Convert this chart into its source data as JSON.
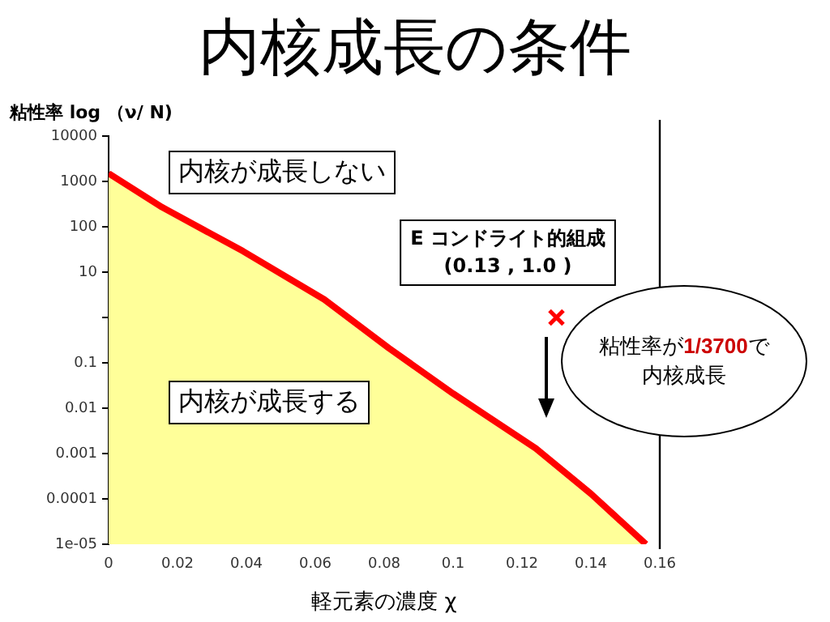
{
  "chart_data": {
    "type": "area",
    "title": "内核成長の条件",
    "xlabel": "軽元素の濃度 χ",
    "ylabel": "粘性率 log （ν/ N)",
    "x": [
      0,
      0.0155,
      0.039,
      0.0626,
      0.0814,
      0.1,
      0.124,
      0.14,
      0.156
    ],
    "series": [
      {
        "type": "area",
        "color": "#ff0000",
        "values": [
          1500,
          270,
          29,
          2.5,
          0.21,
          0.021,
          0.0013,
          0.00013,
          1e-05
        ]
      },
      {
        "type": "scatter",
        "color": "#ff0000",
        "marker": "cross",
        "x": [
          0.13
        ],
        "values": [
          1.0
        ]
      }
    ],
    "log": "y",
    "xlim": [
      0,
      0.16
    ],
    "ylim": [
      1e-05,
      10000
    ],
    "xticks": [
      0,
      0.02,
      0.04,
      0.06,
      0.08,
      0.1,
      0.12,
      0.14,
      0.16
    ],
    "yticks": [
      {
        "value": 10000,
        "label": "10000"
      },
      1000,
      100,
      10,
      {
        "value": 1,
        "label": null
      },
      0.1,
      0.01,
      0.001,
      0.0001,
      {
        "value": 1e-05,
        "label": "1e-05"
      }
    ],
    "ref_lines": [
      {
        "axis": "x",
        "value": 0.16,
        "color": "#000000"
      }
    ],
    "annotations": [
      "内核が成長しない",
      "内核が成長する",
      {
        "text": "E コンドライト的組成\n(0.13 , 1.0 )",
        "x": 0.13,
        "y": 1.0
      },
      "粘性率が1/3700で内核成長"
    ]
  }
}
